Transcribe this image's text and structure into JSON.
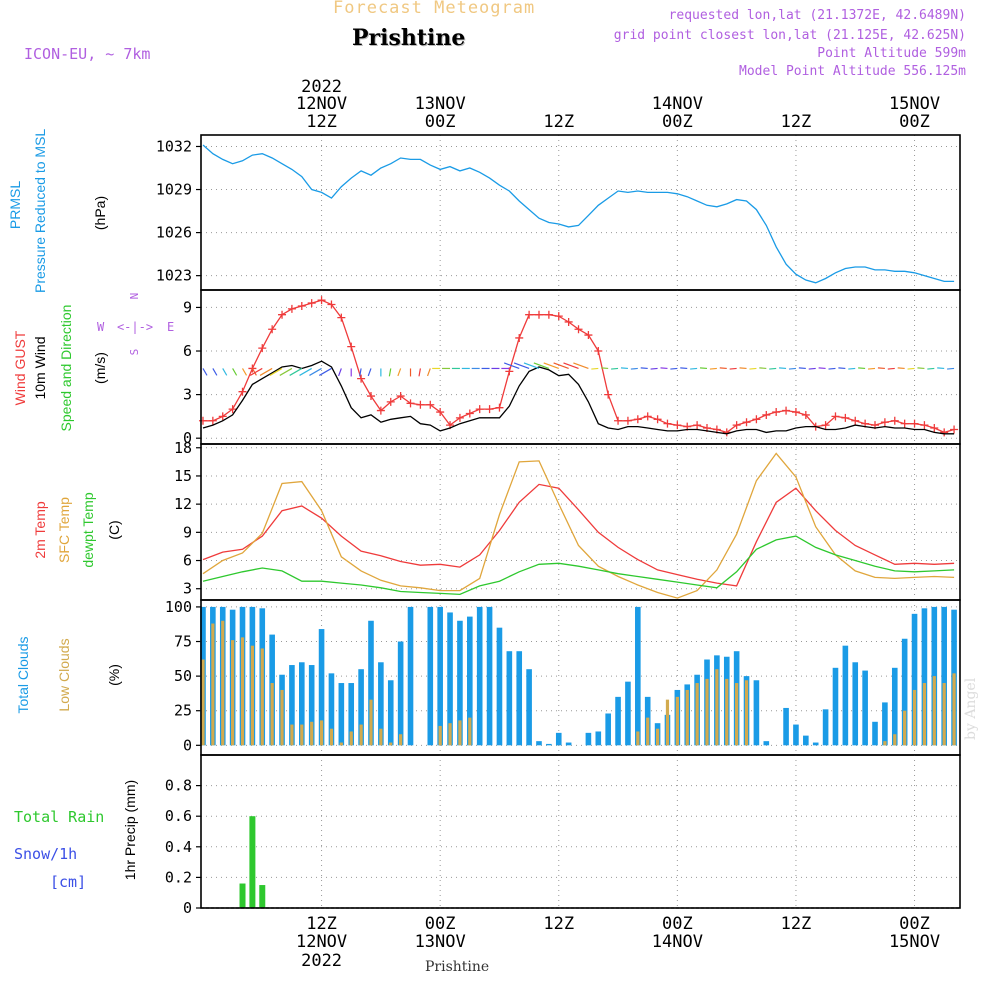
{
  "header": {
    "title": "Forecast Meteogram",
    "location": "Prishtine",
    "model": "ICON-EU, ~ 7km",
    "requested": "requested lon,lat (21.1372E, 42.6489N)",
    "grid_point": "grid point closest lon,lat (21.125E, 42.625N)",
    "point_altitude": "Point Altitude 599m",
    "model_altitude": "Model Point Altitude 556.125m"
  },
  "footer": {
    "location": "Prishtine",
    "watermark": "by Angel"
  },
  "colors": {
    "pressure": "#1a9be6",
    "gust": "#ef3b3b",
    "wind": "#000000",
    "temp": "#ef3b3b",
    "sfc": "#e0a63c",
    "dewpt": "#2ec82e",
    "total": "#1a9be6",
    "low": "#d2aa4e",
    "rain": "#2ec82e",
    "purple": "#b05fe0",
    "snow": "#3b4fe6"
  },
  "time_axis": {
    "top_ticks": [
      {
        "line1": "2022",
        "line2": "12NOV",
        "line3": "12Z",
        "hour": 12
      },
      {
        "line1": "",
        "line2": "13NOV",
        "line3": "00Z",
        "hour": 24
      },
      {
        "line1": "",
        "line2": "",
        "line3": "12Z",
        "hour": 36
      },
      {
        "line1": "",
        "line2": "14NOV",
        "line3": "00Z",
        "hour": 48
      },
      {
        "line1": "",
        "line2": "",
        "line3": "12Z",
        "hour": 60
      },
      {
        "line1": "",
        "line2": "15NOV",
        "line3": "00Z",
        "hour": 72
      }
    ],
    "bottom_ticks": [
      {
        "line1": "12Z",
        "line2": "12NOV",
        "line3": "2022",
        "hour": 12
      },
      {
        "line1": "00Z",
        "line2": "13NOV",
        "line3": "",
        "hour": 24
      },
      {
        "line1": "12Z",
        "line2": "",
        "line3": "",
        "hour": 36
      },
      {
        "line1": "00Z",
        "line2": "14NOV",
        "line3": "",
        "hour": 48
      },
      {
        "line1": "12Z",
        "line2": "",
        "line3": "",
        "hour": 60
      },
      {
        "line1": "00Z",
        "line2": "15NOV",
        "line3": "",
        "hour": 72
      }
    ]
  },
  "chart_data": [
    {
      "type": "line",
      "title": "PRMSL Pressure Reduced to MSL",
      "ylabel": "(hPa)",
      "ylim": [
        1022,
        1032.8
      ],
      "yticks": [
        1023,
        1026,
        1029,
        1032
      ],
      "x_hours": [
        0,
        1,
        2,
        3,
        4,
        5,
        6,
        7,
        8,
        9,
        10,
        11,
        12,
        13,
        14,
        15,
        16,
        17,
        18,
        19,
        20,
        21,
        22,
        23,
        24,
        25,
        26,
        27,
        28,
        29,
        30,
        31,
        32,
        33,
        34,
        35,
        36,
        37,
        38,
        39,
        40,
        41,
        42,
        43,
        44,
        45,
        46,
        47,
        48,
        49,
        50,
        51,
        52,
        53,
        54,
        55,
        56,
        57,
        58,
        59,
        60,
        61,
        62,
        63,
        64,
        65,
        66,
        67,
        68,
        69,
        70,
        71,
        72,
        73,
        74,
        75,
        76
      ],
      "series": [
        {
          "name": "PRMSL",
          "values": [
            1032.1,
            1031.5,
            1031.1,
            1030.8,
            1031.0,
            1031.4,
            1031.5,
            1031.2,
            1030.8,
            1030.4,
            1029.9,
            1029.0,
            1028.8,
            1028.4,
            1029.2,
            1029.8,
            1030.3,
            1030.0,
            1030.5,
            1030.8,
            1031.2,
            1031.1,
            1031.1,
            1030.7,
            1030.4,
            1030.6,
            1030.3,
            1030.5,
            1030.2,
            1029.8,
            1029.3,
            1028.9,
            1028.2,
            1027.6,
            1027.0,
            1026.7,
            1026.6,
            1026.4,
            1026.5,
            1027.2,
            1027.9,
            1028.4,
            1028.9,
            1028.8,
            1028.9,
            1028.8,
            1028.8,
            1028.8,
            1028.7,
            1028.5,
            1028.2,
            1027.9,
            1027.8,
            1028.0,
            1028.3,
            1028.2,
            1027.6,
            1026.5,
            1025.0,
            1023.8,
            1023.1,
            1022.7,
            1022.5,
            1022.8,
            1023.2,
            1023.5,
            1023.6,
            1023.6,
            1023.4,
            1023.4,
            1023.3,
            1023.3,
            1023.2,
            1023.0,
            1022.8,
            1022.6,
            1022.6
          ]
        }
      ]
    },
    {
      "type": "line",
      "title": "Wind GUST / 10m Wind Speed and Direction",
      "ylabel": "(m/s)",
      "ylim": [
        -0.4,
        10.2
      ],
      "yticks": [
        0,
        3,
        6,
        9
      ],
      "compass": {
        "n": "N",
        "e": "E",
        "w": "W",
        "s": "S",
        "arrows": "<-|->"
      },
      "x_hours": [
        0,
        1,
        2,
        3,
        4,
        5,
        6,
        7,
        8,
        9,
        10,
        11,
        12,
        13,
        14,
        15,
        16,
        17,
        18,
        19,
        20,
        21,
        22,
        23,
        24,
        25,
        26,
        27,
        28,
        29,
        30,
        31,
        32,
        33,
        34,
        35,
        36,
        37,
        38,
        39,
        40,
        41,
        42,
        43,
        44,
        45,
        46,
        47,
        48,
        49,
        50,
        51,
        52,
        53,
        54,
        55,
        56,
        57,
        58,
        59,
        60,
        61,
        62,
        63,
        64,
        65,
        66,
        67,
        68,
        69,
        70,
        71,
        72,
        73,
        74,
        75,
        76
      ],
      "series": [
        {
          "name": "Wind GUST",
          "values": [
            1.2,
            1.2,
            1.5,
            2.0,
            3.2,
            4.8,
            6.2,
            7.5,
            8.5,
            8.9,
            9.1,
            9.3,
            9.5,
            9.2,
            8.3,
            6.3,
            4.1,
            2.9,
            1.9,
            2.5,
            2.9,
            2.4,
            2.3,
            2.3,
            1.8,
            0.9,
            1.4,
            1.7,
            2.0,
            2.0,
            2.1,
            4.6,
            6.9,
            8.5,
            8.5,
            8.5,
            8.4,
            8.0,
            7.5,
            7.1,
            6.0,
            3.0,
            1.2,
            1.2,
            1.3,
            1.5,
            1.3,
            1.0,
            0.9,
            0.8,
            0.9,
            0.7,
            0.6,
            0.4,
            0.9,
            1.1,
            1.3,
            1.6,
            1.8,
            1.9,
            1.8,
            1.6,
            0.8,
            0.9,
            1.5,
            1.4,
            1.2,
            1.0,
            0.9,
            1.1,
            1.2,
            1.0,
            1.0,
            0.9,
            0.7,
            0.4,
            0.6
          ]
        },
        {
          "name": "10m Wind",
          "values": [
            0.7,
            0.9,
            1.2,
            1.6,
            2.6,
            3.7,
            4.1,
            4.5,
            4.9,
            5.0,
            4.8,
            5.0,
            5.3,
            4.9,
            3.6,
            2.1,
            1.4,
            1.6,
            1.1,
            1.3,
            1.4,
            1.5,
            1.0,
            0.9,
            0.5,
            0.7,
            1.0,
            1.2,
            1.4,
            1.4,
            1.4,
            2.2,
            3.6,
            4.6,
            4.9,
            4.7,
            4.3,
            4.4,
            3.7,
            2.5,
            1.0,
            0.7,
            0.6,
            0.8,
            0.8,
            0.7,
            0.6,
            0.5,
            0.5,
            0.6,
            0.6,
            0.5,
            0.4,
            0.3,
            0.5,
            0.6,
            0.6,
            0.4,
            0.5,
            0.5,
            0.7,
            0.8,
            0.8,
            0.6,
            0.6,
            0.7,
            0.9,
            0.8,
            0.7,
            0.8,
            0.7,
            0.7,
            0.6,
            0.6,
            0.4,
            0.3,
            0.3
          ]
        }
      ]
    },
    {
      "type": "line",
      "title": "2m Temp / SFC Temp / dewpt Temp",
      "ylabel": "(C)",
      "ylim": [
        1.8,
        18.4
      ],
      "yticks": [
        3,
        6,
        9,
        12,
        15,
        18
      ],
      "x_hours": [
        0,
        2,
        4,
        6,
        8,
        10,
        12,
        14,
        16,
        18,
        20,
        22,
        24,
        26,
        28,
        30,
        32,
        34,
        36,
        38,
        40,
        42,
        44,
        46,
        48,
        50,
        52,
        54,
        56,
        58,
        60,
        62,
        64,
        66,
        68,
        70,
        72,
        74,
        76
      ],
      "series": [
        {
          "name": "2m Temp",
          "values": [
            6.1,
            6.9,
            7.2,
            8.6,
            11.3,
            11.8,
            10.5,
            8.6,
            7.0,
            6.5,
            5.9,
            5.5,
            5.6,
            5.3,
            6.6,
            9.2,
            12.2,
            14.1,
            13.7,
            11.4,
            9.0,
            7.4,
            6.1,
            5.0,
            4.5,
            4.0,
            3.6,
            3.3,
            8.0,
            12.2,
            13.7,
            11.3,
            9.2,
            7.6,
            6.6,
            5.6,
            5.7,
            5.6,
            5.7
          ]
        },
        {
          "name": "SFC Temp",
          "values": [
            4.6,
            6.0,
            6.8,
            8.9,
            14.2,
            14.4,
            11.3,
            6.4,
            4.9,
            3.9,
            3.3,
            3.1,
            2.8,
            2.8,
            4.1,
            10.9,
            16.5,
            16.6,
            12.0,
            7.6,
            5.4,
            4.3,
            3.4,
            2.6,
            2.0,
            2.8,
            5.0,
            8.8,
            14.5,
            17.4,
            14.9,
            9.6,
            6.6,
            4.9,
            4.2,
            4.1,
            4.2,
            4.3,
            4.2
          ]
        },
        {
          "name": "dewpt Temp",
          "values": [
            3.8,
            4.3,
            4.8,
            5.2,
            4.9,
            3.8,
            3.8,
            3.6,
            3.4,
            3.1,
            2.7,
            2.6,
            2.5,
            2.4,
            3.3,
            3.8,
            4.8,
            5.6,
            5.7,
            5.4,
            5.0,
            4.6,
            4.3,
            4.0,
            3.7,
            3.4,
            3.1,
            4.8,
            7.2,
            8.2,
            8.6,
            7.4,
            6.6,
            6.0,
            5.4,
            4.9,
            4.8,
            4.9,
            5.0
          ]
        }
      ]
    },
    {
      "type": "bar",
      "title": "Total Clouds / Low Clouds",
      "ylabel": "(%)",
      "ylim": [
        -7,
        105
      ],
      "yticks": [
        0,
        25,
        50,
        75,
        100
      ],
      "x_hours": [
        0,
        1,
        2,
        3,
        4,
        5,
        6,
        7,
        8,
        9,
        10,
        11,
        12,
        13,
        14,
        15,
        16,
        17,
        18,
        19,
        20,
        21,
        22,
        23,
        24,
        25,
        26,
        27,
        28,
        29,
        30,
        31,
        32,
        33,
        34,
        35,
        36,
        37,
        38,
        39,
        40,
        41,
        42,
        43,
        44,
        45,
        46,
        47,
        48,
        49,
        50,
        51,
        52,
        53,
        54,
        55,
        56,
        57,
        58,
        59,
        60,
        61,
        62,
        63,
        64,
        65,
        66,
        67,
        68,
        69,
        70,
        71,
        72,
        73,
        74,
        75,
        76
      ],
      "series": [
        {
          "name": "Total Clouds",
          "values": [
            100,
            100,
            100,
            98,
            100,
            100,
            99,
            80,
            51,
            58,
            60,
            58,
            84,
            52,
            45,
            45,
            55,
            90,
            60,
            47,
            75,
            100,
            0,
            100,
            100,
            96,
            90,
            93,
            100,
            100,
            85,
            68,
            68,
            55,
            3,
            1,
            9,
            2,
            0,
            9,
            10,
            23,
            35,
            46,
            100,
            35,
            16,
            22,
            40,
            44,
            51,
            62,
            65,
            64,
            68,
            50,
            47,
            3,
            0,
            27,
            15,
            7,
            2,
            26,
            56,
            72,
            60,
            54,
            17,
            31,
            56,
            77,
            95,
            99,
            100,
            100,
            98
          ]
        },
        {
          "name": "Low Clouds",
          "values": [
            62,
            88,
            90,
            76,
            78,
            72,
            70,
            45,
            40,
            15,
            15,
            17,
            18,
            12,
            2,
            10,
            15,
            33,
            12,
            2,
            8,
            0,
            0,
            0,
            14,
            16,
            18,
            20,
            0,
            0,
            0,
            0,
            0,
            0,
            0,
            0,
            0,
            0,
            0,
            0,
            0,
            0,
            0,
            0,
            10,
            20,
            12,
            33,
            35,
            40,
            45,
            48,
            55,
            48,
            45,
            47,
            0,
            0,
            0,
            0,
            0,
            0,
            0,
            0,
            0,
            0,
            0,
            0,
            0,
            3,
            8,
            25,
            40,
            45,
            50,
            45,
            52
          ]
        }
      ]
    },
    {
      "type": "bar",
      "title": "1hr Precip (mm)",
      "ylabel": "1hr Precip (mm)",
      "ylim": [
        0,
        1.0
      ],
      "yticks": [
        0,
        0.2,
        0.4,
        0.6,
        0.8
      ],
      "x_hours": [
        4,
        5,
        6
      ],
      "series": [
        {
          "name": "Total Rain",
          "values": [
            0.16,
            0.6,
            0.15
          ]
        }
      ],
      "legend": {
        "total_rain": "Total  Rain",
        "snow": "Snow/1h",
        "snow_unit": "[cm]"
      }
    }
  ]
}
